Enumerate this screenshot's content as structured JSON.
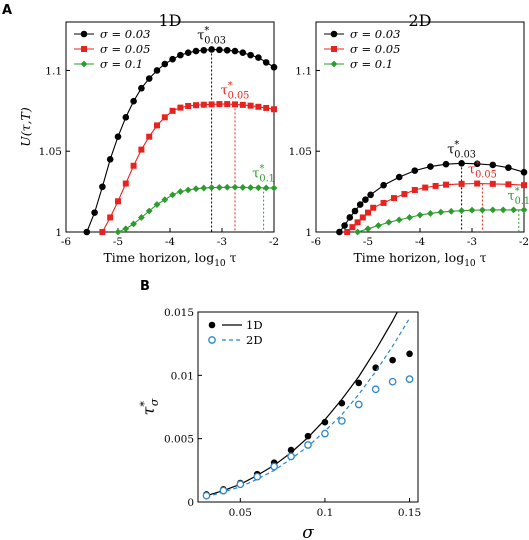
{
  "panel_labels": [
    "A",
    "B"
  ],
  "chart_data": [
    {
      "type": "line",
      "title": "1D",
      "xlabel": "Time horizon, log10 τ",
      "ylabel": "U(τ,T)",
      "xlim": [
        -6,
        -2
      ],
      "ylim": [
        1.0,
        1.13
      ],
      "xticks": [
        -6,
        -5,
        -4,
        -3,
        -2
      ],
      "xtick_labels": [
        "-6",
        "-5",
        "-4",
        "-3",
        "-2"
      ],
      "yticks": [
        1.0,
        1.05,
        1.1
      ],
      "ytick_labels": [
        "1",
        "1.05",
        "1.1"
      ],
      "legend": "top-left",
      "series": [
        {
          "name": "σ = 0.03",
          "color": "#000000",
          "marker": "circle",
          "x": [
            -5.6,
            -5.45,
            -5.3,
            -5.15,
            -5.0,
            -4.85,
            -4.7,
            -4.55,
            -4.4,
            -4.25,
            -4.1,
            -3.95,
            -3.8,
            -3.65,
            -3.5,
            -3.35,
            -3.2,
            -3.05,
            -2.9,
            -2.75,
            -2.6,
            -2.45,
            -2.3,
            -2.15,
            -2.0
          ],
          "y": [
            1.0,
            1.012,
            1.028,
            1.045,
            1.059,
            1.071,
            1.081,
            1.089,
            1.095,
            1.1,
            1.104,
            1.107,
            1.1095,
            1.111,
            1.112,
            1.1125,
            1.113,
            1.1128,
            1.1125,
            1.112,
            1.111,
            1.1095,
            1.108,
            1.105,
            1.102
          ]
        },
        {
          "name": "σ = 0.05",
          "color": "#e8231f",
          "marker": "square",
          "x": [
            -5.3,
            -5.15,
            -5.0,
            -4.85,
            -4.7,
            -4.55,
            -4.4,
            -4.25,
            -4.1,
            -3.95,
            -3.8,
            -3.65,
            -3.5,
            -3.35,
            -3.2,
            -3.05,
            -2.9,
            -2.75,
            -2.6,
            -2.45,
            -2.3,
            -2.15,
            -2.0
          ],
          "y": [
            1.0,
            1.009,
            1.019,
            1.03,
            1.041,
            1.051,
            1.059,
            1.066,
            1.071,
            1.075,
            1.077,
            1.078,
            1.0785,
            1.0788,
            1.079,
            1.0792,
            1.0792,
            1.079,
            1.0787,
            1.0782,
            1.0775,
            1.0768,
            1.076
          ]
        },
        {
          "name": "σ = 0.1",
          "color": "#2e9b2e",
          "marker": "diamond",
          "x": [
            -5.0,
            -4.85,
            -4.7,
            -4.55,
            -4.4,
            -4.25,
            -4.1,
            -3.95,
            -3.8,
            -3.65,
            -3.5,
            -3.35,
            -3.2,
            -3.05,
            -2.9,
            -2.75,
            -2.6,
            -2.45,
            -2.3,
            -2.15,
            -2.0
          ],
          "y": [
            1.0,
            1.002,
            1.005,
            1.009,
            1.013,
            1.017,
            1.02,
            1.023,
            1.025,
            1.026,
            1.0268,
            1.0272,
            1.0275,
            1.0276,
            1.0277,
            1.0277,
            1.0276,
            1.0275,
            1.0274,
            1.0273,
            1.0272
          ]
        }
      ],
      "markers_vertical": [
        {
          "label": "τ*0.03",
          "x": -3.2,
          "color": "#000000",
          "y_top": 1.113
        },
        {
          "label": "τ*0.05",
          "x": -2.75,
          "color": "#e8231f",
          "y_top": 1.079
        },
        {
          "label": "τ*0.1",
          "x": -2.2,
          "color": "#2e9b2e",
          "y_top": 1.0275
        }
      ]
    },
    {
      "type": "line",
      "title": "2D",
      "xlabel": "Time horizon, log10 τ",
      "ylabel": "",
      "xlim": [
        -6,
        -2
      ],
      "ylim": [
        1.0,
        1.13
      ],
      "xticks": [
        -6,
        -5,
        -4,
        -3,
        -2
      ],
      "xtick_labels": [
        "-6",
        "-5",
        "-4",
        "-3",
        "-2"
      ],
      "yticks": [
        1.0,
        1.05,
        1.1
      ],
      "ytick_labels": [
        "1",
        "1.05",
        "1.1"
      ],
      "legend": "top-left",
      "series": [
        {
          "name": "σ = 0.03",
          "color": "#000000",
          "marker": "circle",
          "x": [
            -5.55,
            -5.45,
            -5.35,
            -5.25,
            -5.15,
            -5.05,
            -4.95,
            -4.7,
            -4.4,
            -4.1,
            -3.8,
            -3.5,
            -3.2,
            -2.9,
            -2.6,
            -2.3,
            -2.0
          ],
          "y": [
            1.0,
            1.004,
            1.009,
            1.013,
            1.017,
            1.02,
            1.023,
            1.029,
            1.034,
            1.038,
            1.0405,
            1.042,
            1.0425,
            1.0422,
            1.0415,
            1.0398,
            1.037
          ]
        },
        {
          "name": "σ = 0.05",
          "color": "#e8231f",
          "marker": "square",
          "x": [
            -5.4,
            -5.3,
            -5.2,
            -5.1,
            -5.0,
            -4.9,
            -4.7,
            -4.5,
            -4.3,
            -4.1,
            -3.9,
            -3.7,
            -3.5,
            -3.2,
            -2.9,
            -2.6,
            -2.3,
            -2.0
          ],
          "y": [
            1.0,
            1.003,
            1.006,
            1.009,
            1.012,
            1.015,
            1.018,
            1.021,
            1.0235,
            1.026,
            1.0275,
            1.0285,
            1.0293,
            1.0298,
            1.03,
            1.0298,
            1.0295,
            1.029
          ]
        },
        {
          "name": "σ = 0.1",
          "color": "#2e9b2e",
          "marker": "diamond",
          "x": [
            -5.2,
            -5.0,
            -4.8,
            -4.6,
            -4.4,
            -4.2,
            -4.0,
            -3.8,
            -3.6,
            -3.4,
            -3.2,
            -3.0,
            -2.8,
            -2.6,
            -2.4,
            -2.2,
            -2.0
          ],
          "y": [
            1.0,
            1.002,
            1.004,
            1.006,
            1.0075,
            1.009,
            1.0105,
            1.0115,
            1.0123,
            1.0128,
            1.0132,
            1.0135,
            1.0136,
            1.0137,
            1.0137,
            1.0137,
            1.0137
          ]
        }
      ],
      "markers_vertical": [
        {
          "label": "τ*0.03",
          "x": -3.2,
          "color": "#000000",
          "y_top": 1.0425
        },
        {
          "label": "τ*0.05",
          "x": -2.8,
          "color": "#e8231f",
          "y_top": 1.03
        },
        {
          "label": "τ*0.1",
          "x": -2.1,
          "color": "#2e9b2e",
          "y_top": 1.0137
        }
      ]
    },
    {
      "type": "scatter",
      "title": "",
      "xlabel": "σ",
      "ylabel": "τ*σ",
      "xlim": [
        0.025,
        0.155
      ],
      "ylim": [
        0,
        0.015
      ],
      "xticks": [
        0.05,
        0.1,
        0.15
      ],
      "xtick_labels": [
        "0.05",
        "0.1",
        "0.15"
      ],
      "yticks": [
        0,
        0.005,
        0.01,
        0.015
      ],
      "ytick_labels": [
        "0",
        "0.005",
        "0.01",
        "0.015"
      ],
      "legend": "top-left",
      "series": [
        {
          "name": "1D",
          "color": "#000000",
          "marker": "filled-circle",
          "line": "solid",
          "x": [
            0.03,
            0.04,
            0.05,
            0.06,
            0.07,
            0.08,
            0.09,
            0.1,
            0.11,
            0.12,
            0.13,
            0.14,
            0.15
          ],
          "y": [
            0.0006,
            0.001,
            0.0015,
            0.0022,
            0.0031,
            0.0041,
            0.0052,
            0.0063,
            0.0078,
            0.0094,
            0.0106,
            0.0112,
            0.0117
          ],
          "fit_y": [
            0.0005,
            0.0009,
            0.0014,
            0.0021,
            0.0029,
            0.0039,
            0.0051,
            0.0065,
            0.0081,
            0.0099,
            0.012,
            0.0143,
            0.0168
          ]
        },
        {
          "name": "2D",
          "color": "#2a86c9",
          "marker": "open-circle",
          "line": "dashed",
          "x": [
            0.03,
            0.04,
            0.05,
            0.06,
            0.07,
            0.08,
            0.09,
            0.1,
            0.11,
            0.12,
            0.13,
            0.14,
            0.15
          ],
          "y": [
            0.0005,
            0.0009,
            0.0014,
            0.002,
            0.0028,
            0.0036,
            0.0045,
            0.0054,
            0.0064,
            0.0077,
            0.0089,
            0.0095,
            0.0097
          ],
          "fit_y": [
            0.0004,
            0.0008,
            0.0012,
            0.0018,
            0.0025,
            0.0034,
            0.0044,
            0.0056,
            0.0069,
            0.0085,
            0.0103,
            0.0123,
            0.0145
          ]
        }
      ]
    }
  ]
}
